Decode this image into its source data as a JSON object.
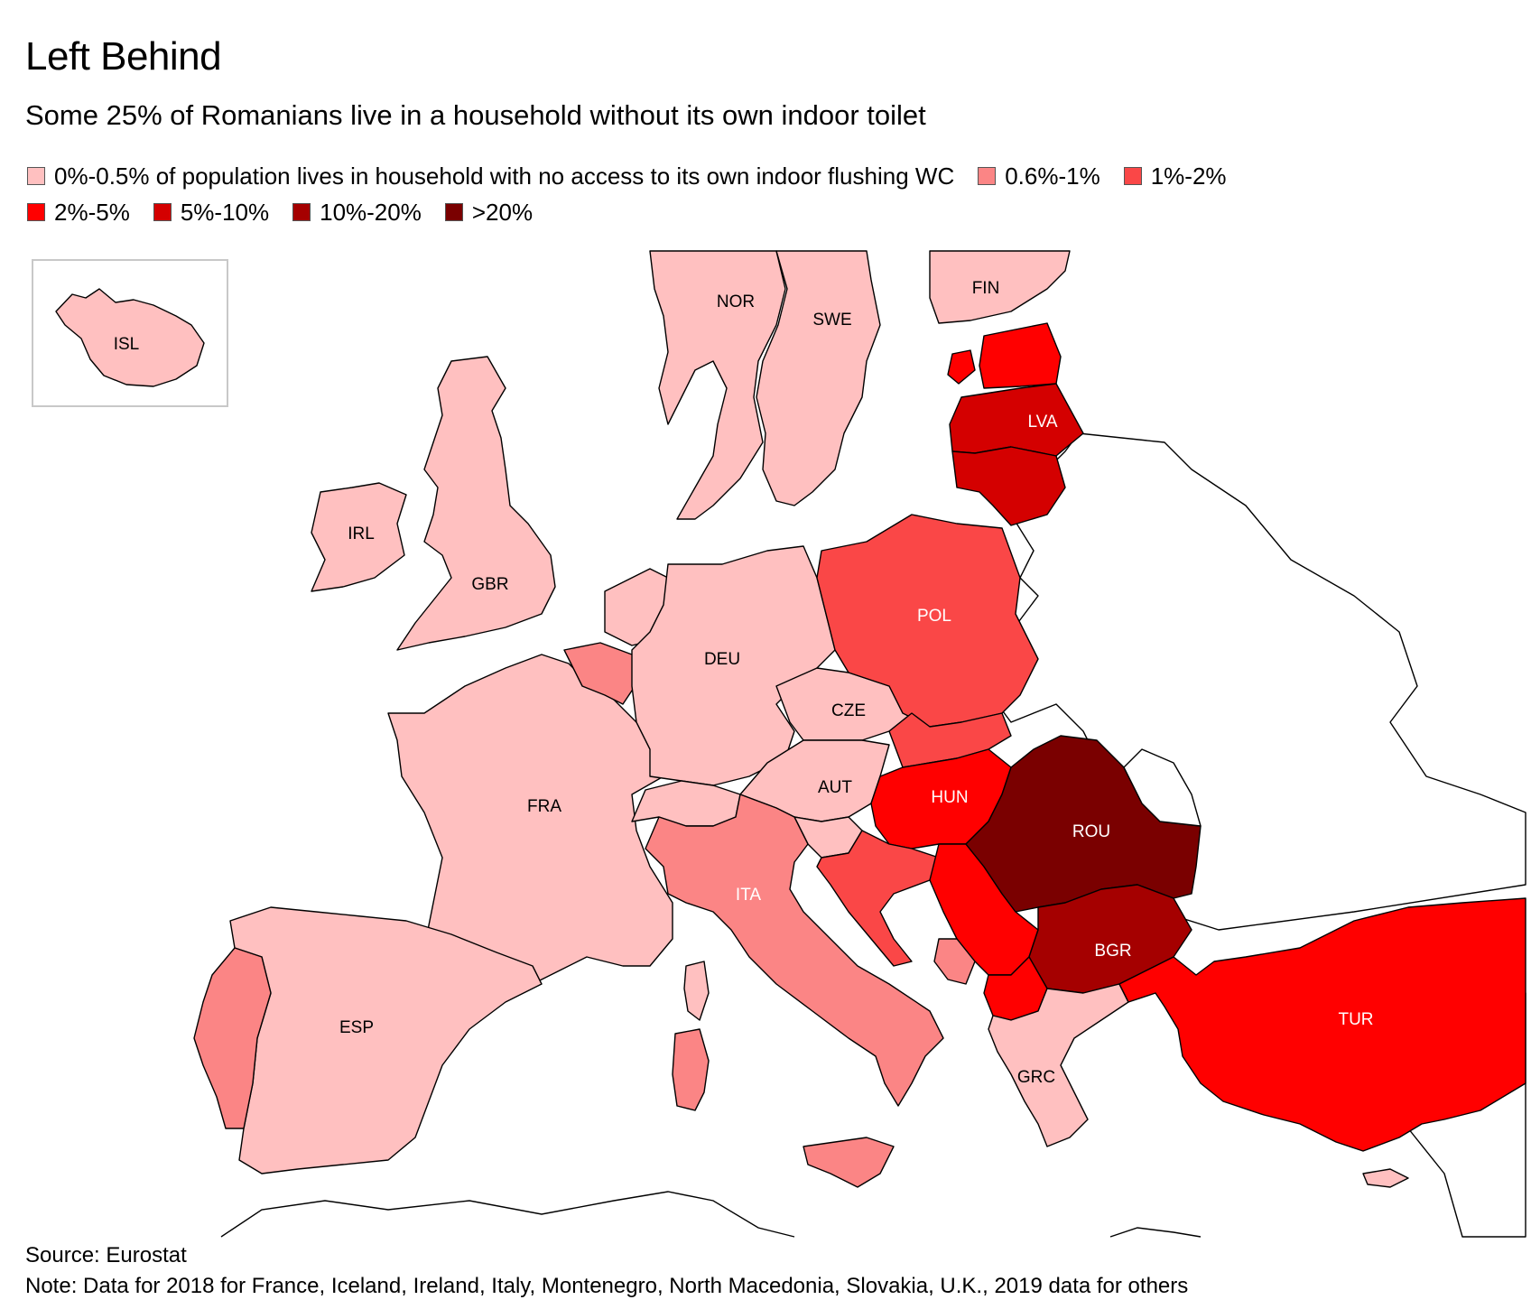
{
  "title": "Left Behind",
  "subtitle": "Some 25% of Romanians live in a household without its own indoor toilet",
  "legend": [
    {
      "label": "0%-0.5% of population lives in household with no access to its own indoor flushing WC",
      "color": "#ffc0c0"
    },
    {
      "label": "0.6%-1%",
      "color": "#fb8585"
    },
    {
      "label": "1%-2%",
      "color": "#fa4747"
    },
    {
      "label": "2%-5%",
      "color": "#ff0000"
    },
    {
      "label": "5%-10%",
      "color": "#d40000"
    },
    {
      "label": "10%-20%",
      "color": "#a50000"
    },
    {
      "label": ">20%",
      "color": "#7a0000"
    }
  ],
  "countries": {
    "ISL": {
      "label": "ISL",
      "range": "0%-0.5%"
    },
    "NOR": {
      "label": "NOR",
      "range": "0%-0.5%"
    },
    "SWE": {
      "label": "SWE",
      "range": "0%-0.5%"
    },
    "FIN": {
      "label": "FIN",
      "range": "0%-0.5%"
    },
    "LVA": {
      "label": "LVA",
      "range": "5%-10%"
    },
    "IRL": {
      "label": "IRL",
      "range": "0%-0.5%"
    },
    "GBR": {
      "label": "GBR",
      "range": "0%-0.5%"
    },
    "POL": {
      "label": "POL",
      "range": "1%-2%"
    },
    "DEU": {
      "label": "DEU",
      "range": "0%-0.5%"
    },
    "CZE": {
      "label": "CZE",
      "range": "0%-0.5%"
    },
    "AUT": {
      "label": "AUT",
      "range": "0%-0.5%"
    },
    "HUN": {
      "label": "HUN",
      "range": "2%-5%"
    },
    "ROU": {
      "label": "ROU",
      "range": ">20%"
    },
    "FRA": {
      "label": "FRA",
      "range": "0%-0.5%"
    },
    "ITA": {
      "label": "ITA",
      "range": "0.6%-1%"
    },
    "BGR": {
      "label": "BGR",
      "range": "10%-20%"
    },
    "TUR": {
      "label": "TUR",
      "range": "2%-5%"
    },
    "ESP": {
      "label": "ESP",
      "range": "0%-0.5%"
    },
    "GRC": {
      "label": "GRC",
      "range": "0%-0.5%"
    }
  },
  "source": "Source: Eurostat",
  "note": "Note: Data for 2018 for France, Iceland, Ireland, Italy, Montenegro, North Macedonia, Slovakia, U.K., 2019 data for others"
}
